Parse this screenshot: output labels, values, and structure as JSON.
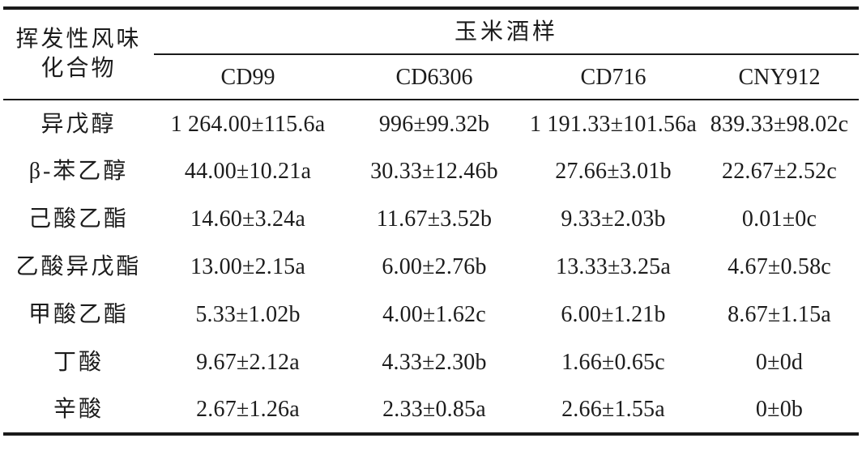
{
  "table": {
    "header": {
      "row_group_label": "挥发性风味\n化合物",
      "span_label": "玉米酒样",
      "columns": [
        "CD99",
        "CD6306",
        "CD716",
        "CNY912"
      ]
    },
    "rows": [
      {
        "compound": "异戊醇",
        "values": [
          "1 264.00±115.6a",
          "996±99.32b",
          "1 191.33±101.56a",
          "839.33±98.02c"
        ]
      },
      {
        "compound": "β-苯乙醇",
        "values": [
          "44.00±10.21a",
          "30.33±12.46b",
          "27.66±3.01b",
          "22.67±2.52c"
        ]
      },
      {
        "compound": "己酸乙酯",
        "values": [
          "14.60±3.24a",
          "11.67±3.52b",
          "9.33±2.03b",
          "0.01±0c"
        ]
      },
      {
        "compound": "乙酸异戊酯",
        "values": [
          "13.00±2.15a",
          "6.00±2.76b",
          "13.33±3.25a",
          "4.67±0.58c"
        ]
      },
      {
        "compound": "甲酸乙酯",
        "values": [
          "5.33±1.02b",
          "4.00±1.62c",
          "6.00±1.21b",
          "8.67±1.15a"
        ]
      },
      {
        "compound": "丁酸",
        "values": [
          "9.67±2.12a",
          "4.33±2.30b",
          "1.66±0.65c",
          "0±0d"
        ]
      },
      {
        "compound": "辛酸",
        "values": [
          "2.67±1.26a",
          "2.33±0.85a",
          "2.66±1.55a",
          "0±0b"
        ]
      }
    ]
  },
  "colors": {
    "text": "#1c1c1c",
    "rule": "#1a1a1a",
    "background": "#ffffff"
  }
}
